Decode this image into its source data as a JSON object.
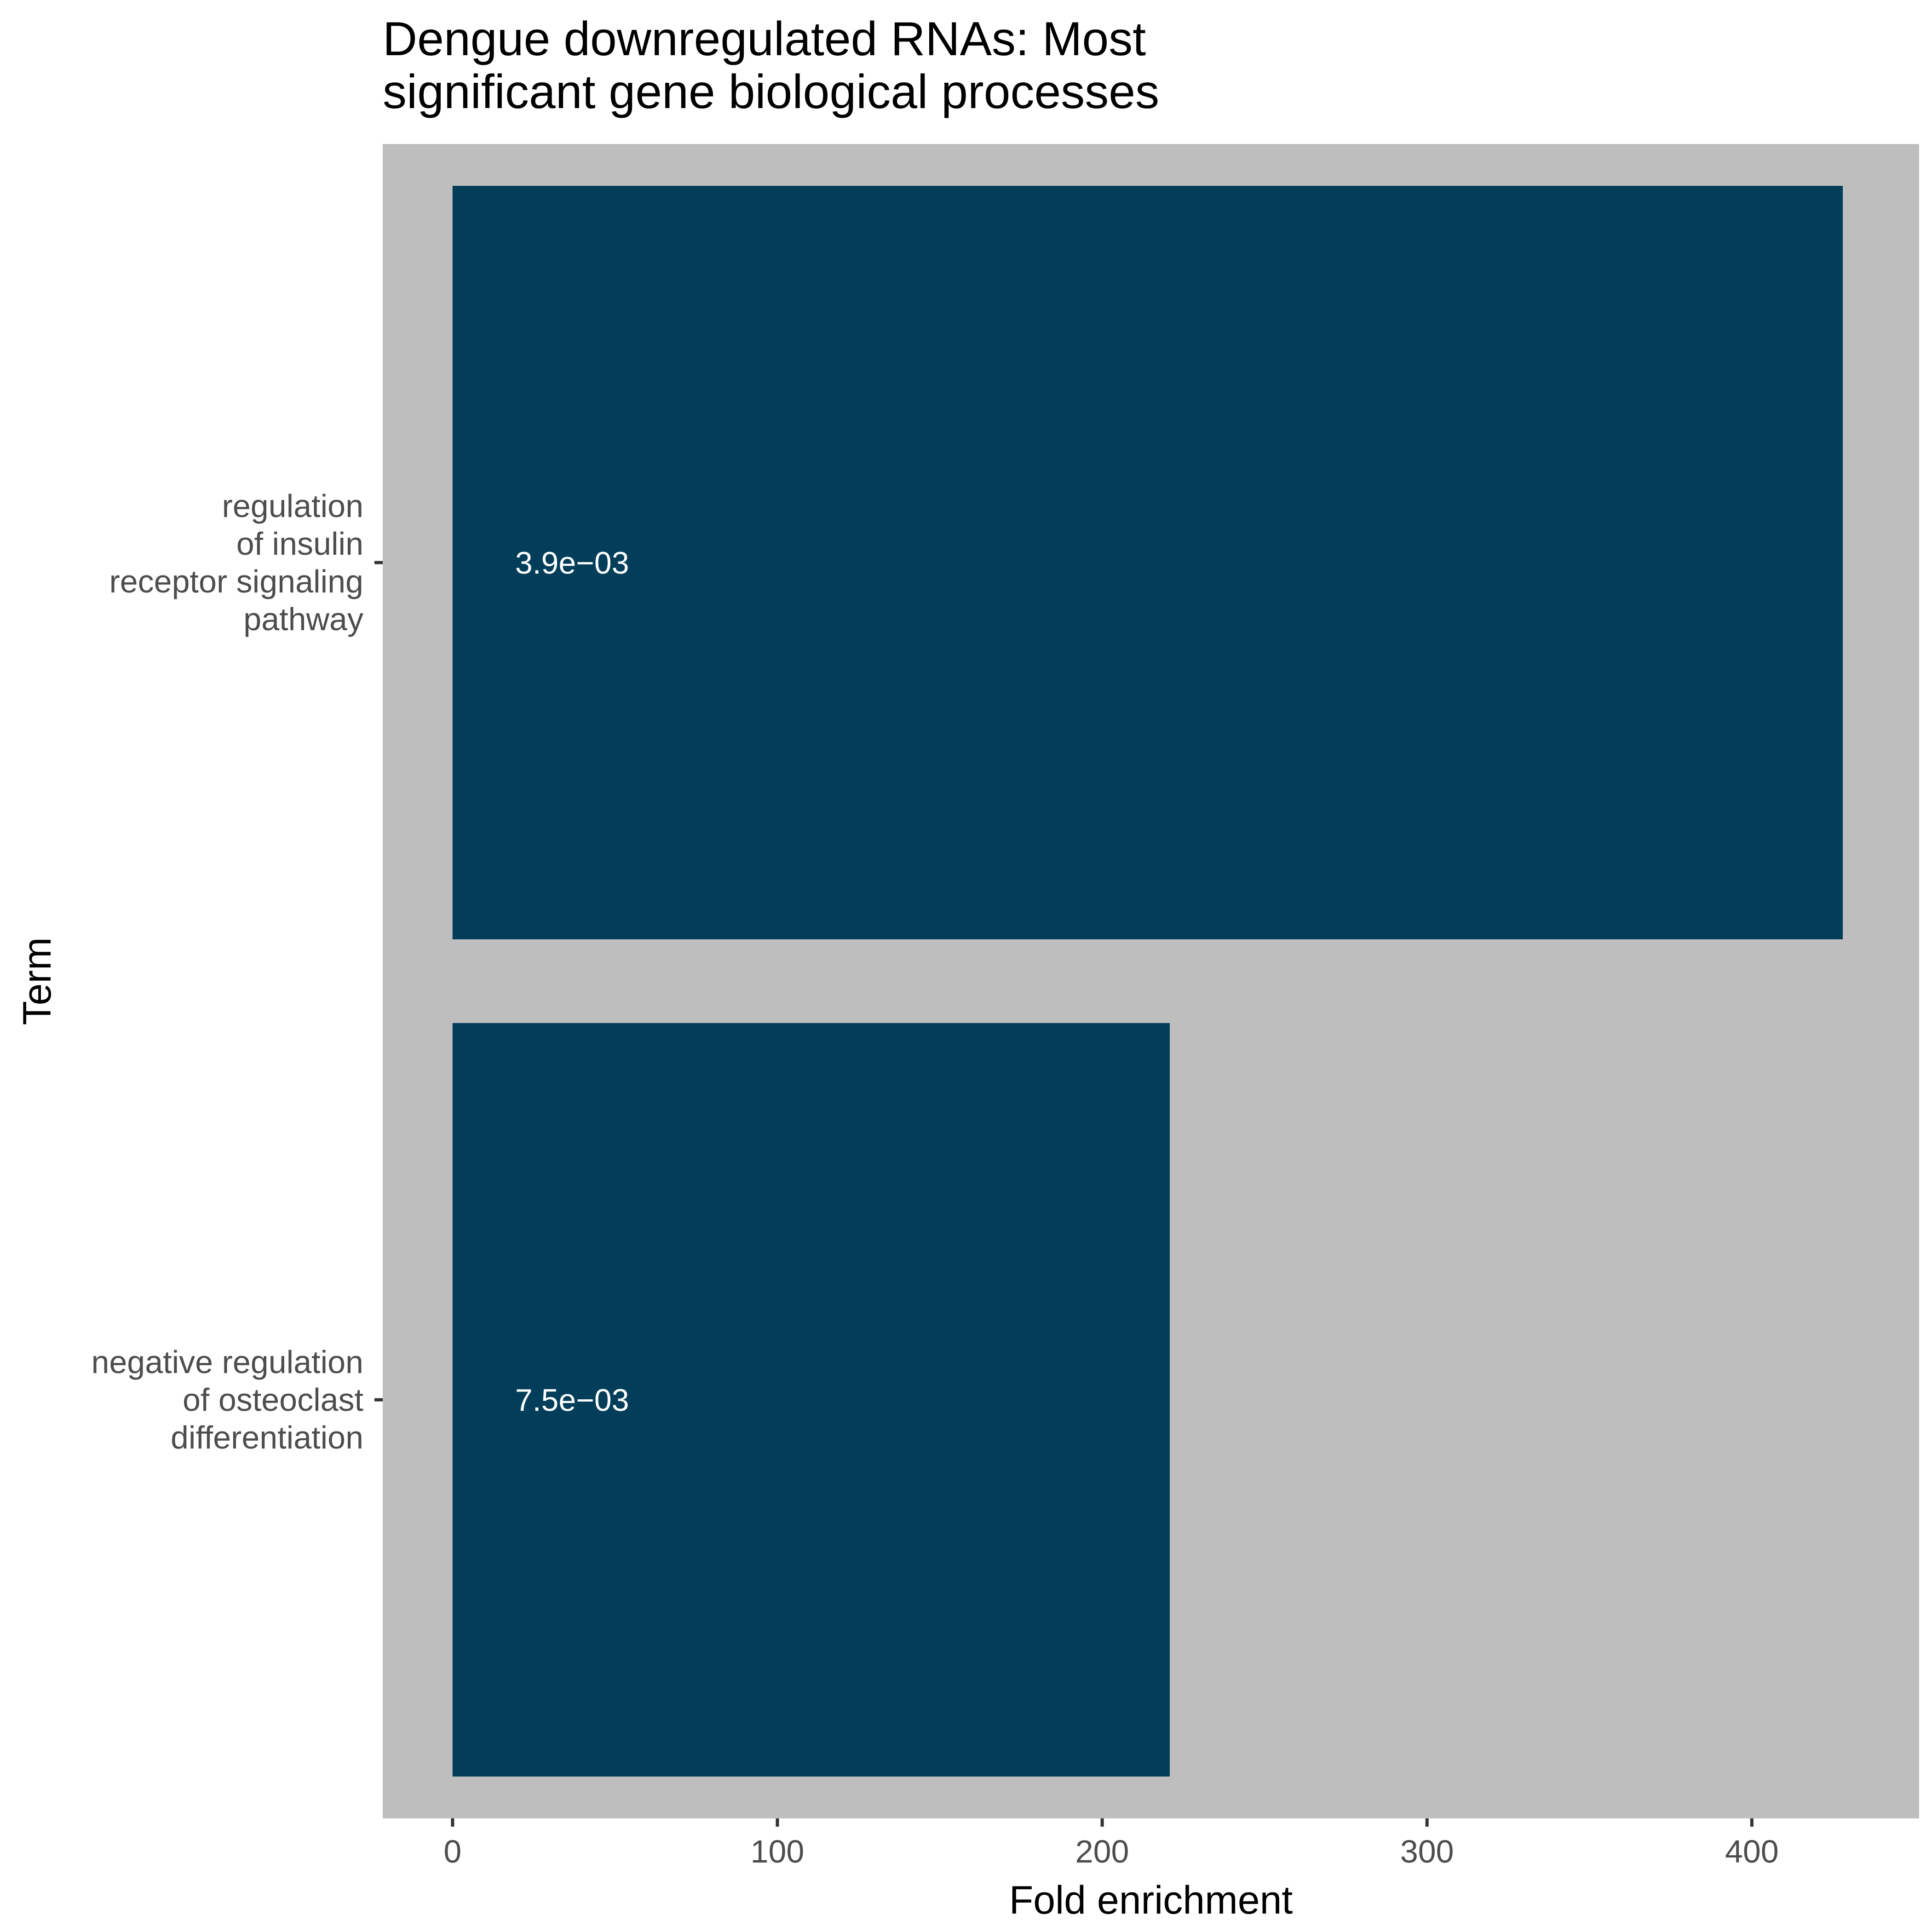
{
  "chart_data": {
    "type": "bar",
    "orientation": "horizontal",
    "title_lines": [
      "Dengue downregulated RNAs: Most",
      "significant gene biological processes"
    ],
    "xlabel": "Fold enrichment",
    "ylabel": "Term",
    "xlim": [
      -21.5,
      451.5
    ],
    "xticks": [
      0,
      100,
      200,
      300,
      400
    ],
    "categories": [
      {
        "label_lines": [
          "regulation",
          "of insulin",
          "receptor signaling",
          "pathway"
        ],
        "value": 428,
        "annotation": "3.9e−03"
      },
      {
        "label_lines": [
          "negative regulation",
          "of osteoclast",
          "differentiation"
        ],
        "value": 220.8,
        "annotation": "7.5e−03"
      }
    ],
    "bar_color": "#023e5a",
    "panel_color": "#bebebe",
    "grid": false,
    "legend": "none"
  }
}
